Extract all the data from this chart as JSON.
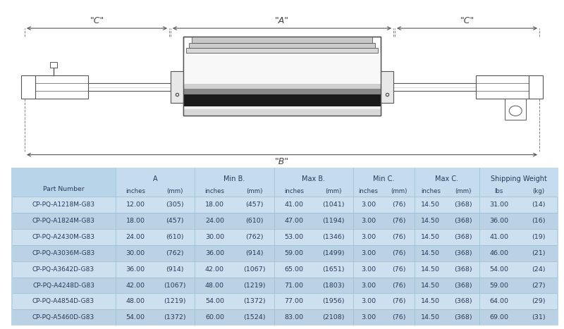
{
  "bg_color": "#ffffff",
  "table_bg": "#b8d4e8",
  "text_color": "#2a3a5a",
  "diagram_line_color": "#555555",
  "diagram_text_color": "#444444",
  "diagram_labels": {
    "C_left": "\"C\"",
    "A": "\"A\"",
    "C_right": "\"C\"",
    "B": "\"B\""
  },
  "header_labels": [
    "A",
    "Min B.",
    "Max B.",
    "Min C.",
    "Max C.",
    "Shipping Weight"
  ],
  "header_sub": [
    [
      "inches",
      "(mm)"
    ],
    [
      "inches",
      "(mm)"
    ],
    [
      "inches",
      "(mm)"
    ],
    [
      "inches",
      "(mm)"
    ],
    [
      "inches",
      "(mm)"
    ],
    [
      "lbs",
      "(kg)"
    ]
  ],
  "rows": [
    [
      "CP-PQ-A1218M-G83",
      "12.00",
      "(305)",
      "18.00",
      "(457)",
      "41.00",
      "(1041)",
      "3.00",
      "(76)",
      "14.50",
      "(368)",
      "31.00",
      "(14)"
    ],
    [
      "CP-PQ-A1824M-G83",
      "18.00",
      "(457)",
      "24.00",
      "(610)",
      "47.00",
      "(1194)",
      "3.00",
      "(76)",
      "14.50",
      "(368)",
      "36.00",
      "(16)"
    ],
    [
      "CP-PQ-A2430M-G83",
      "24.00",
      "(610)",
      "30.00",
      "(762)",
      "53.00",
      "(1346)",
      "3.00",
      "(76)",
      "14.50",
      "(368)",
      "41.00",
      "(19)"
    ],
    [
      "CP-PQ-A3036M-G83",
      "30.00",
      "(762)",
      "36.00",
      "(914)",
      "59.00",
      "(1499)",
      "3.00",
      "(76)",
      "14.50",
      "(368)",
      "46.00",
      "(21)"
    ],
    [
      "CP-PQ-A3642D-G83",
      "36.00",
      "(914)",
      "42.00",
      "(1067)",
      "65.00",
      "(1651)",
      "3.00",
      "(76)",
      "14.50",
      "(368)",
      "54.00",
      "(24)"
    ],
    [
      "CP-PQ-A4248D-G83",
      "42.00",
      "(1067)",
      "48.00",
      "(1219)",
      "71.00",
      "(1803)",
      "3.00",
      "(76)",
      "14.50",
      "(368)",
      "59.00",
      "(27)"
    ],
    [
      "CP-PQ-A4854D-G83",
      "48.00",
      "(1219)",
      "54.00",
      "(1372)",
      "77.00",
      "(1956)",
      "3.00",
      "(76)",
      "14.50",
      "(368)",
      "64.00",
      "(29)"
    ],
    [
      "CP-PQ-A5460D-G83",
      "54.00",
      "(1372)",
      "60.00",
      "(1524)",
      "83.00",
      "(2108)",
      "3.00",
      "(76)",
      "14.50",
      "(368)",
      "69.00",
      "(31)"
    ]
  ]
}
